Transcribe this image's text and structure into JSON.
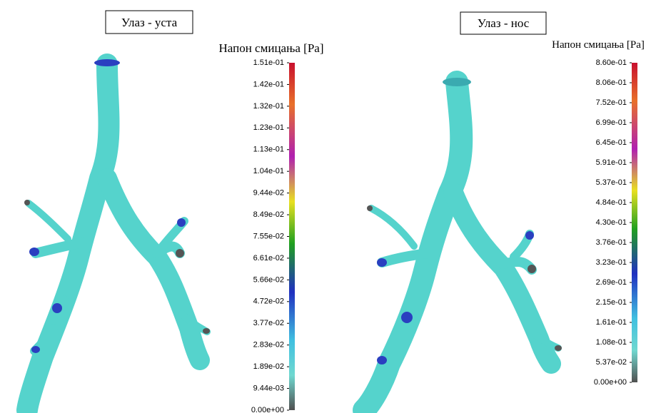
{
  "panels": [
    {
      "title": "Улаз - уста",
      "colorbar": {
        "title": "Напон смицања [Pa]",
        "ticks": [
          "1.51e-01",
          "1.42e-01",
          "1.32e-01",
          "1.23e-01",
          "1.13e-01",
          "1.04e-01",
          "9.44e-02",
          "8.49e-02",
          "7.55e-02",
          "6.61e-02",
          "5.66e-02",
          "4.72e-02",
          "3.77e-02",
          "2.83e-02",
          "1.89e-02",
          "9.44e-03",
          "0.00e+00"
        ]
      }
    },
    {
      "title": "Улаз - нос",
      "colorbar": {
        "title": "Напон смицања [Pa]",
        "ticks": [
          "8.60e-01",
          "8.06e-01",
          "7.52e-01",
          "6.99e-01",
          "6.45e-01",
          "5.91e-01",
          "5.37e-01",
          "4.84e-01",
          "4.30e-01",
          "3.76e-01",
          "3.23e-01",
          "2.69e-01",
          "2.15e-01",
          "1.61e-01",
          "1.08e-01",
          "5.37e-02",
          "0.00e+00"
        ]
      }
    }
  ]
}
